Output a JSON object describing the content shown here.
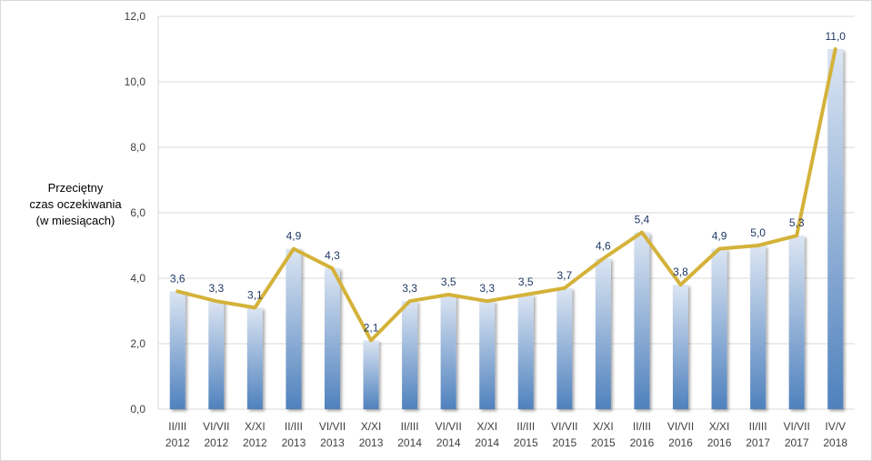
{
  "chart_data": {
    "type": "bar",
    "ylabel": [
      "Przeciętny",
      "czas oczekiwania",
      "(w miesiącach)"
    ],
    "xlabel": "",
    "ylim": [
      0,
      12
    ],
    "yticks": [
      "0,0",
      "2,0",
      "4,0",
      "6,0",
      "8,0",
      "10,0",
      "12,0"
    ],
    "grid": true,
    "categories": [
      [
        "II/III",
        "2012"
      ],
      [
        "VI/VII",
        "2012"
      ],
      [
        "X/XI",
        "2012"
      ],
      [
        "II/III",
        "2013"
      ],
      [
        "VI/VII",
        "2013"
      ],
      [
        "X/XI",
        "2013"
      ],
      [
        "II/III",
        "2014"
      ],
      [
        "VI/VII",
        "2014"
      ],
      [
        "X/XI",
        "2014"
      ],
      [
        "II/III",
        "2015"
      ],
      [
        "VI/VII",
        "2015"
      ],
      [
        "X/XI",
        "2015"
      ],
      [
        "II/III",
        "2016"
      ],
      [
        "VI/VII",
        "2016"
      ],
      [
        "X/XI",
        "2016"
      ],
      [
        "II/III",
        "2017"
      ],
      [
        "VI/VII",
        "2017"
      ],
      [
        "IV/V",
        "2018"
      ]
    ],
    "values": [
      3.6,
      3.3,
      3.1,
      4.9,
      4.3,
      2.1,
      3.3,
      3.5,
      3.3,
      3.5,
      3.7,
      4.6,
      5.4,
      3.8,
      4.9,
      5.0,
      5.3,
      11.0
    ],
    "data_labels": [
      "3,6",
      "3,3",
      "3,1",
      "4,9",
      "4,3",
      "2,1",
      "3,3",
      "3,5",
      "3,3",
      "3,5",
      "3,7",
      "4,6",
      "5,4",
      "3,8",
      "4,9",
      "5,0",
      "5,3",
      "11,0"
    ],
    "line_overlay": true,
    "colors": {
      "bar_top": "#dbe5f3",
      "bar_bottom": "#4f81bd",
      "line": "#d4b23a",
      "label": "#1f3864",
      "grid": "#d9d9d9"
    }
  }
}
